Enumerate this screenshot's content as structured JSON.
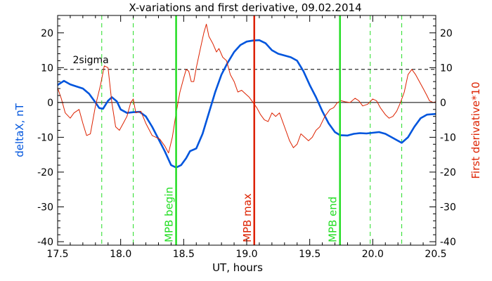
{
  "chart_data": {
    "type": "line",
    "title": "X-variations and first derivative, 09.02.2014",
    "xlabel": "UT, hours",
    "ylabel_left": "deltaX, nT",
    "ylabel_right": "First derivative*10",
    "xlim": [
      17.5,
      20.5
    ],
    "ylim": [
      -41,
      25
    ],
    "x_ticks": [
      "17.5",
      "18.0",
      "18.5",
      "19.0",
      "19.5",
      "20.0",
      "20.5"
    ],
    "y_ticks_left": [
      "20",
      "10",
      "0",
      "-10",
      "-20",
      "-30",
      "-40"
    ],
    "y_ticks_right": [
      "20",
      "10",
      "0",
      "-10",
      "-20",
      "-30",
      "-40"
    ],
    "colors": {
      "deltaX": "#0055dd",
      "derivative": "#dd2200",
      "mpb_begin_end": "#22dd22",
      "mpb_max": "#dd2200",
      "axes": "#000000"
    },
    "threshold": {
      "label": "2sigma",
      "value": 9.5
    },
    "zero_line": 0,
    "vertical_lines": [
      {
        "label": "MPB begin",
        "x": 18.44,
        "color": "#22dd22"
      },
      {
        "label": "MPB max",
        "x": 19.06,
        "color": "#dd2200"
      },
      {
        "label": "MPB end",
        "x": 19.74,
        "color": "#22dd22"
      }
    ],
    "dashed_vertical_lines": [
      17.85,
      18.1,
      19.98,
      20.23
    ],
    "series": [
      {
        "id": "deltaX",
        "color": "#0055dd",
        "points": [
          [
            17.5,
            5.0
          ],
          [
            17.55,
            6.2
          ],
          [
            17.6,
            5.2
          ],
          [
            17.65,
            4.6
          ],
          [
            17.7,
            4.0
          ],
          [
            17.75,
            2.5
          ],
          [
            17.8,
            0.0
          ],
          [
            17.83,
            -1.6
          ],
          [
            17.86,
            -1.8
          ],
          [
            17.9,
            0.5
          ],
          [
            17.93,
            1.5
          ],
          [
            17.97,
            0.3
          ],
          [
            18.0,
            -2.0
          ],
          [
            18.05,
            -3.0
          ],
          [
            18.1,
            -2.8
          ],
          [
            18.15,
            -2.7
          ],
          [
            18.2,
            -4.0
          ],
          [
            18.25,
            -7.0
          ],
          [
            18.3,
            -10.5
          ],
          [
            18.35,
            -14.0
          ],
          [
            18.4,
            -18.0
          ],
          [
            18.44,
            -18.7
          ],
          [
            18.48,
            -18.0
          ],
          [
            18.52,
            -16.0
          ],
          [
            18.55,
            -14.0
          ],
          [
            18.6,
            -13.2
          ],
          [
            18.65,
            -9.0
          ],
          [
            18.7,
            -3.0
          ],
          [
            18.75,
            3.0
          ],
          [
            18.8,
            8.0
          ],
          [
            18.85,
            11.5
          ],
          [
            18.9,
            14.5
          ],
          [
            18.95,
            16.5
          ],
          [
            19.0,
            17.5
          ],
          [
            19.05,
            17.8
          ],
          [
            19.1,
            17.9
          ],
          [
            19.15,
            17.0
          ],
          [
            19.2,
            15.0
          ],
          [
            19.25,
            14.0
          ],
          [
            19.3,
            13.5
          ],
          [
            19.35,
            13.0
          ],
          [
            19.4,
            12.0
          ],
          [
            19.45,
            9.0
          ],
          [
            19.5,
            5.0
          ],
          [
            19.55,
            1.5
          ],
          [
            19.6,
            -2.5
          ],
          [
            19.65,
            -6.0
          ],
          [
            19.7,
            -8.5
          ],
          [
            19.74,
            -9.4
          ],
          [
            19.8,
            -9.5
          ],
          [
            19.85,
            -9.0
          ],
          [
            19.9,
            -8.8
          ],
          [
            19.95,
            -8.9
          ],
          [
            20.0,
            -8.7
          ],
          [
            20.05,
            -8.5
          ],
          [
            20.1,
            -9.0
          ],
          [
            20.15,
            -10.0
          ],
          [
            20.2,
            -11.0
          ],
          [
            20.23,
            -11.6
          ],
          [
            20.28,
            -10.0
          ],
          [
            20.33,
            -7.0
          ],
          [
            20.38,
            -4.5
          ],
          [
            20.43,
            -3.5
          ],
          [
            20.5,
            -3.3
          ]
        ]
      },
      {
        "id": "derivative",
        "color": "#dd2200",
        "points": [
          [
            17.5,
            4.2
          ],
          [
            17.53,
            1.0
          ],
          [
            17.56,
            -3.0
          ],
          [
            17.6,
            -4.5
          ],
          [
            17.63,
            -3.0
          ],
          [
            17.67,
            -2.0
          ],
          [
            17.7,
            -6.0
          ],
          [
            17.73,
            -9.5
          ],
          [
            17.76,
            -9.0
          ],
          [
            17.8,
            -1.0
          ],
          [
            17.84,
            5.0
          ],
          [
            17.87,
            10.5
          ],
          [
            17.9,
            10.0
          ],
          [
            17.93,
            0.0
          ],
          [
            17.96,
            -7.0
          ],
          [
            17.99,
            -8.0
          ],
          [
            18.02,
            -6.0
          ],
          [
            18.05,
            -4.0
          ],
          [
            18.08,
            0.0
          ],
          [
            18.1,
            1.0
          ],
          [
            18.12,
            -3.0
          ],
          [
            18.16,
            -2.5
          ],
          [
            18.2,
            -6.0
          ],
          [
            18.25,
            -9.5
          ],
          [
            18.28,
            -10.0
          ],
          [
            18.31,
            -10.5
          ],
          [
            18.35,
            -12.5
          ],
          [
            18.38,
            -14.5
          ],
          [
            18.41,
            -10.0
          ],
          [
            18.44,
            -3.0
          ],
          [
            18.47,
            3.0
          ],
          [
            18.5,
            7.0
          ],
          [
            18.52,
            9.5
          ],
          [
            18.54,
            9.0
          ],
          [
            18.56,
            6.0
          ],
          [
            18.58,
            6.0
          ],
          [
            18.6,
            10.0
          ],
          [
            18.63,
            15.0
          ],
          [
            18.66,
            20.0
          ],
          [
            18.68,
            22.5
          ],
          [
            18.7,
            19.0
          ],
          [
            18.73,
            17.0
          ],
          [
            18.76,
            14.5
          ],
          [
            18.78,
            15.5
          ],
          [
            18.81,
            13.0
          ],
          [
            18.84,
            12.0
          ],
          [
            18.87,
            8.0
          ],
          [
            18.9,
            6.0
          ],
          [
            18.93,
            3.0
          ],
          [
            18.96,
            3.5
          ],
          [
            18.99,
            2.5
          ],
          [
            19.02,
            1.5
          ],
          [
            19.05,
            0.0
          ],
          [
            19.08,
            -1.5
          ],
          [
            19.11,
            -3.5
          ],
          [
            19.14,
            -5.0
          ],
          [
            19.17,
            -5.5
          ],
          [
            19.2,
            -3.0
          ],
          [
            19.23,
            -4.0
          ],
          [
            19.26,
            -3.0
          ],
          [
            19.28,
            -5.0
          ],
          [
            19.31,
            -8.0
          ],
          [
            19.34,
            -11.0
          ],
          [
            19.37,
            -13.0
          ],
          [
            19.4,
            -12.0
          ],
          [
            19.43,
            -9.0
          ],
          [
            19.46,
            -10.0
          ],
          [
            19.49,
            -11.0
          ],
          [
            19.52,
            -10.0
          ],
          [
            19.55,
            -8.0
          ],
          [
            19.58,
            -7.0
          ],
          [
            19.62,
            -4.0
          ],
          [
            19.66,
            -2.0
          ],
          [
            19.69,
            -1.5
          ],
          [
            19.72,
            0.0
          ],
          [
            19.75,
            0.5
          ],
          [
            19.78,
            0.2
          ],
          [
            19.82,
            0.0
          ],
          [
            19.86,
            1.2
          ],
          [
            19.89,
            0.5
          ],
          [
            19.92,
            -1.0
          ],
          [
            19.96,
            -0.5
          ],
          [
            20.0,
            1.0
          ],
          [
            20.03,
            0.5
          ],
          [
            20.06,
            -1.5
          ],
          [
            20.1,
            -3.5
          ],
          [
            20.13,
            -4.5
          ],
          [
            20.16,
            -4.0
          ],
          [
            20.19,
            -2.5
          ],
          [
            20.22,
            0.0
          ],
          [
            20.25,
            3.0
          ],
          [
            20.28,
            8.0
          ],
          [
            20.31,
            9.5
          ],
          [
            20.34,
            8.0
          ],
          [
            20.37,
            6.0
          ],
          [
            20.4,
            4.0
          ],
          [
            20.43,
            2.0
          ],
          [
            20.45,
            0.5
          ],
          [
            20.48,
            0.0
          ],
          [
            20.5,
            0.2
          ]
        ]
      }
    ]
  }
}
